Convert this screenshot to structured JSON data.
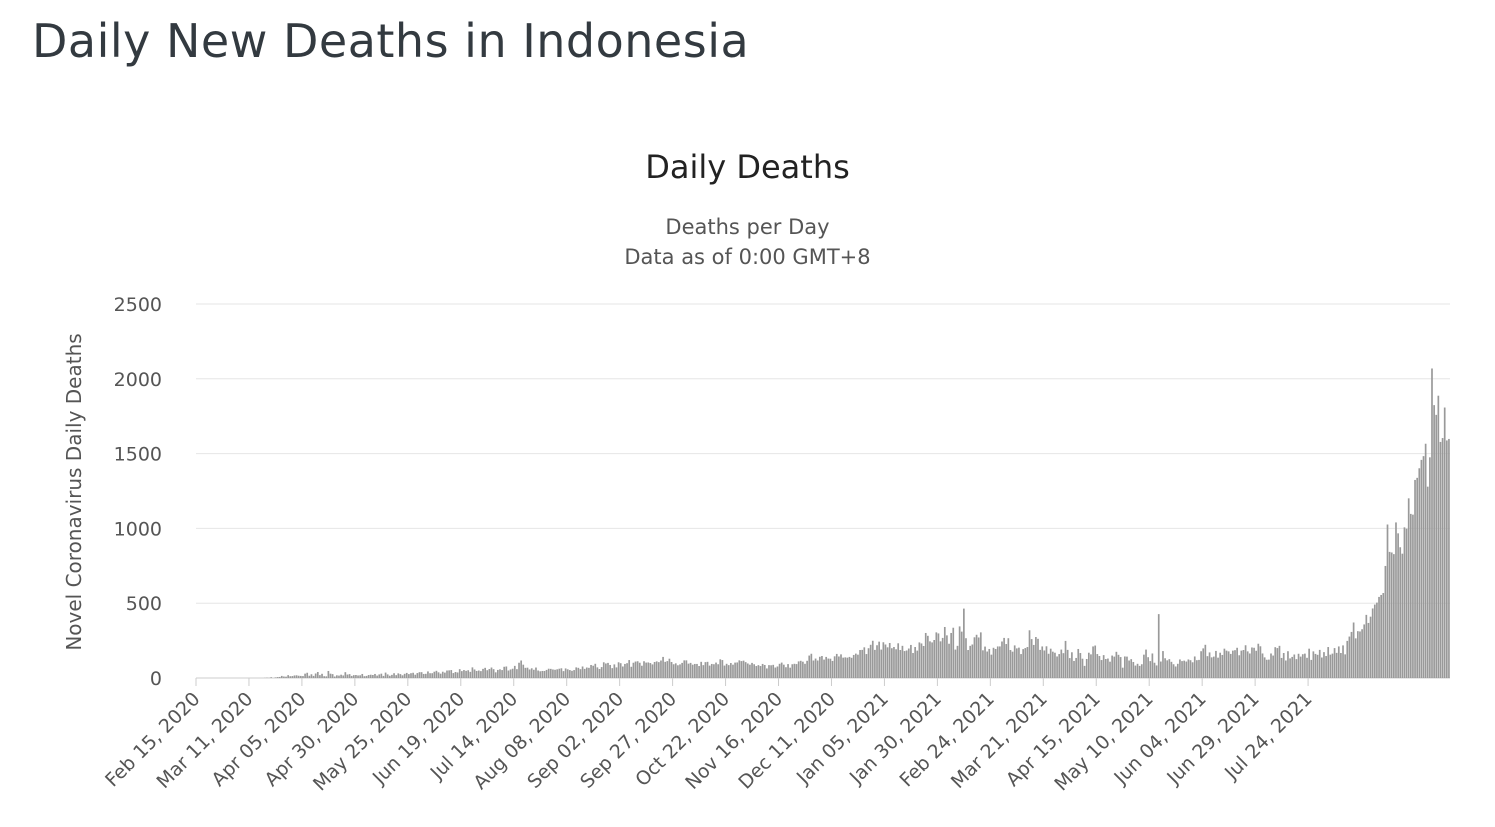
{
  "page": {
    "title": "Daily New Deaths in Indonesia"
  },
  "chart_data": {
    "type": "bar",
    "title": "Daily Deaths",
    "subtitle": [
      "Deaths per Day",
      "Data as of 0:00 GMT+8"
    ],
    "ylabel": "Novel Coronavirus Daily Deaths",
    "xlabel": "",
    "ylim": [
      0,
      2500
    ],
    "yticks": [
      0,
      500,
      1000,
      1500,
      2000,
      2500
    ],
    "grid": true,
    "legend": "none",
    "bar_color": "#999999",
    "grid_color": "#e6e6e6",
    "x_start": "2020-02-15",
    "x_end": "2021-08-06",
    "xticks": [
      "Feb 15, 2020",
      "Mar 11, 2020",
      "Apr 05, 2020",
      "Apr 30, 2020",
      "May 25, 2020",
      "Jun 19, 2020",
      "Jul 14, 2020",
      "Aug 08, 2020",
      "Sep 02, 2020",
      "Sep 27, 2020",
      "Oct 22, 2020",
      "Nov 16, 2020",
      "Dec 11, 2020",
      "Jan 05, 2021",
      "Jan 30, 2021",
      "Feb 24, 2021",
      "Mar 21, 2021",
      "Apr 15, 2021",
      "May 10, 2021",
      "Jun 04, 2021",
      "Jun 29, 2021",
      "Jul 24, 2021"
    ],
    "values": [
      0,
      0,
      0,
      0,
      0,
      0,
      0,
      0,
      0,
      0,
      0,
      0,
      0,
      0,
      0,
      0,
      0,
      0,
      0,
      0,
      0,
      0,
      0,
      0,
      0,
      0,
      0,
      0,
      0,
      0,
      0,
      0,
      1,
      2,
      1,
      5,
      0,
      4,
      6,
      7,
      14,
      10,
      9,
      19,
      12,
      13,
      17,
      18,
      15,
      14,
      13,
      29,
      35,
      15,
      25,
      14,
      30,
      40,
      19,
      28,
      12,
      11,
      47,
      29,
      26,
      10,
      18,
      16,
      22,
      17,
      39,
      23,
      26,
      14,
      19,
      20,
      17,
      18,
      27,
      12,
      14,
      20,
      22,
      20,
      27,
      16,
      24,
      29,
      14,
      36,
      24,
      15,
      21,
      32,
      19,
      31,
      26,
      18,
      28,
      34,
      26,
      32,
      35,
      22,
      33,
      39,
      39,
      27,
      28,
      44,
      32,
      32,
      42,
      48,
      38,
      29,
      42,
      36,
      50,
      51,
      53,
      33,
      40,
      37,
      59,
      46,
      53,
      48,
      52,
      41,
      71,
      57,
      47,
      50,
      46,
      61,
      68,
      52,
      60,
      70,
      59,
      38,
      54,
      58,
      53,
      75,
      77,
      50,
      57,
      62,
      81,
      59,
      102,
      117,
      89,
      68,
      69,
      57,
      65,
      55,
      70,
      50,
      45,
      47,
      47,
      54,
      62,
      61,
      57,
      55,
      58,
      62,
      65,
      46,
      64,
      58,
      53,
      48,
      53,
      71,
      68,
      59,
      77,
      61,
      70,
      68,
      87,
      82,
      95,
      71,
      60,
      73,
      105,
      97,
      101,
      87,
      66,
      91,
      71,
      105,
      99,
      77,
      94,
      99,
      120,
      75,
      102,
      110,
      112,
      102,
      82,
      112,
      103,
      104,
      100,
      91,
      107,
      111,
      106,
      117,
      141,
      108,
      113,
      129,
      107,
      92,
      98,
      85,
      91,
      101,
      118,
      118,
      96,
      101,
      89,
      94,
      94,
      80,
      108,
      86,
      106,
      108,
      83,
      94,
      92,
      103,
      92,
      125,
      120,
      83,
      95,
      86,
      100,
      89,
      103,
      104,
      118,
      113,
      116,
      106,
      97,
      89,
      101,
      92,
      80,
      86,
      80,
      94,
      87,
      64,
      86,
      85,
      88,
      70,
      77,
      95,
      103,
      89,
      72,
      93,
      69,
      92,
      95,
      93,
      111,
      115,
      109,
      95,
      115,
      150,
      162,
      117,
      130,
      117,
      142,
      147,
      123,
      141,
      130,
      129,
      114,
      145,
      161,
      144,
      158,
      136,
      138,
      136,
      141,
      135,
      154,
      163,
      156,
      187,
      188,
      205,
      160,
      199,
      222,
      249,
      188,
      219,
      243,
      190,
      239,
      224,
      205,
      234,
      199,
      207,
      192,
      232,
      187,
      215,
      180,
      184,
      197,
      221,
      167,
      207,
      183,
      238,
      231,
      214,
      301,
      282,
      245,
      238,
      254,
      305,
      298,
      245,
      268,
      341,
      285,
      229,
      301,
      336,
      190,
      215,
      345,
      310,
      464,
      266,
      187,
      215,
      224,
      272,
      289,
      271,
      305,
      185,
      210,
      177,
      194,
      156,
      202,
      194,
      211,
      211,
      244,
      268,
      227,
      266,
      187,
      176,
      218,
      198,
      203,
      160,
      193,
      200,
      207,
      319,
      260,
      221,
      274,
      262,
      188,
      211,
      184,
      212,
      162,
      196,
      176,
      169,
      144,
      160,
      190,
      166,
      248,
      188,
      133,
      172,
      114,
      134,
      194,
      167,
      129,
      81,
      127,
      169,
      158,
      211,
      217,
      160,
      147,
      120,
      153,
      127,
      130,
      109,
      150,
      143,
      175,
      155,
      140,
      69,
      144,
      143,
      117,
      126,
      107,
      83,
      95,
      81,
      92,
      156,
      190,
      139,
      113,
      164,
      102,
      84,
      427,
      110,
      180,
      132,
      118,
      126,
      108,
      92,
      77,
      95,
      124,
      113,
      116,
      110,
      124,
      119,
      105,
      144,
      119,
      121,
      179,
      198,
      222,
      146,
      171,
      138,
      143,
      181,
      136,
      169,
      154,
      196,
      183,
      178,
      161,
      183,
      186,
      202,
      152,
      183,
      187,
      219,
      178,
      164,
      204,
      202,
      182,
      229,
      212,
      164,
      138,
      122,
      123,
      164,
      150,
      206,
      200,
      215,
      134,
      167,
      117,
      179,
      131,
      141,
      157,
      126,
      162,
      143,
      159,
      163,
      135,
      196,
      121,
      178,
      161,
      155,
      188,
      137,
      173,
      147,
      207,
      156,
      163,
      200,
      168,
      211,
      167,
      218,
      158,
      248,
      277,
      308,
      371,
      265,
      313,
      311,
      326,
      358,
      422,
      368,
      410,
      465,
      491,
      504,
      542,
      555,
      568,
      749,
      1026,
      843,
      839,
      828,
      1040,
      967,
      874,
      831,
      1007,
      998,
      1201,
      1097,
      1092,
      1324,
      1338,
      1402,
      1458,
      1483,
      1566,
      1279,
      1475,
      2069,
      1824,
      1759,
      1887,
      1578,
      1604,
      1808,
      1588,
      1598
    ]
  }
}
